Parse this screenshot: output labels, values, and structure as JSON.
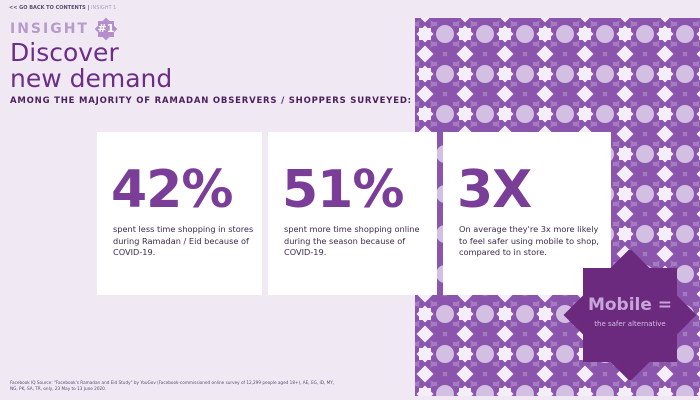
{
  "nav": {
    "back": "<< GO BACK TO CONTENTS",
    "separator": " | ",
    "current": "INSIGHT 1"
  },
  "insight": {
    "word": "INSIGHT",
    "badge": "#1"
  },
  "title": {
    "line1": "Discover",
    "line2": "new demand"
  },
  "subtitle": "AMONG THE MAJORITY OF RAMADAN OBSERVERS / SHOPPERS SURVEYED:",
  "stats": [
    {
      "value": "42%",
      "text": "spent less time shopping in stores during Ramadan / Eid because of COVID-19."
    },
    {
      "value": "51%",
      "text": "spent more time shopping online during the season because of COVID-19."
    },
    {
      "value": "3X",
      "text": "On average they're 3x more likely to feel safer using mobile to shop, compared to in store."
    }
  ],
  "callout": {
    "title": "Mobile =",
    "subtitle": "the safer alternative"
  },
  "footer": "Facebook IQ Source: \"Facebook's Ramadan and Eid Study\" by YouGov (Facebook-commissioned online survey of 12,299 people aged 18+), AE, EG, ID, MY, NG, PK, SA, TR, only, 23 May to 13 June 2020.",
  "colors": {
    "accent": "#7a3d98",
    "dark": "#6b2a7e",
    "background": "#f0e9f4"
  }
}
